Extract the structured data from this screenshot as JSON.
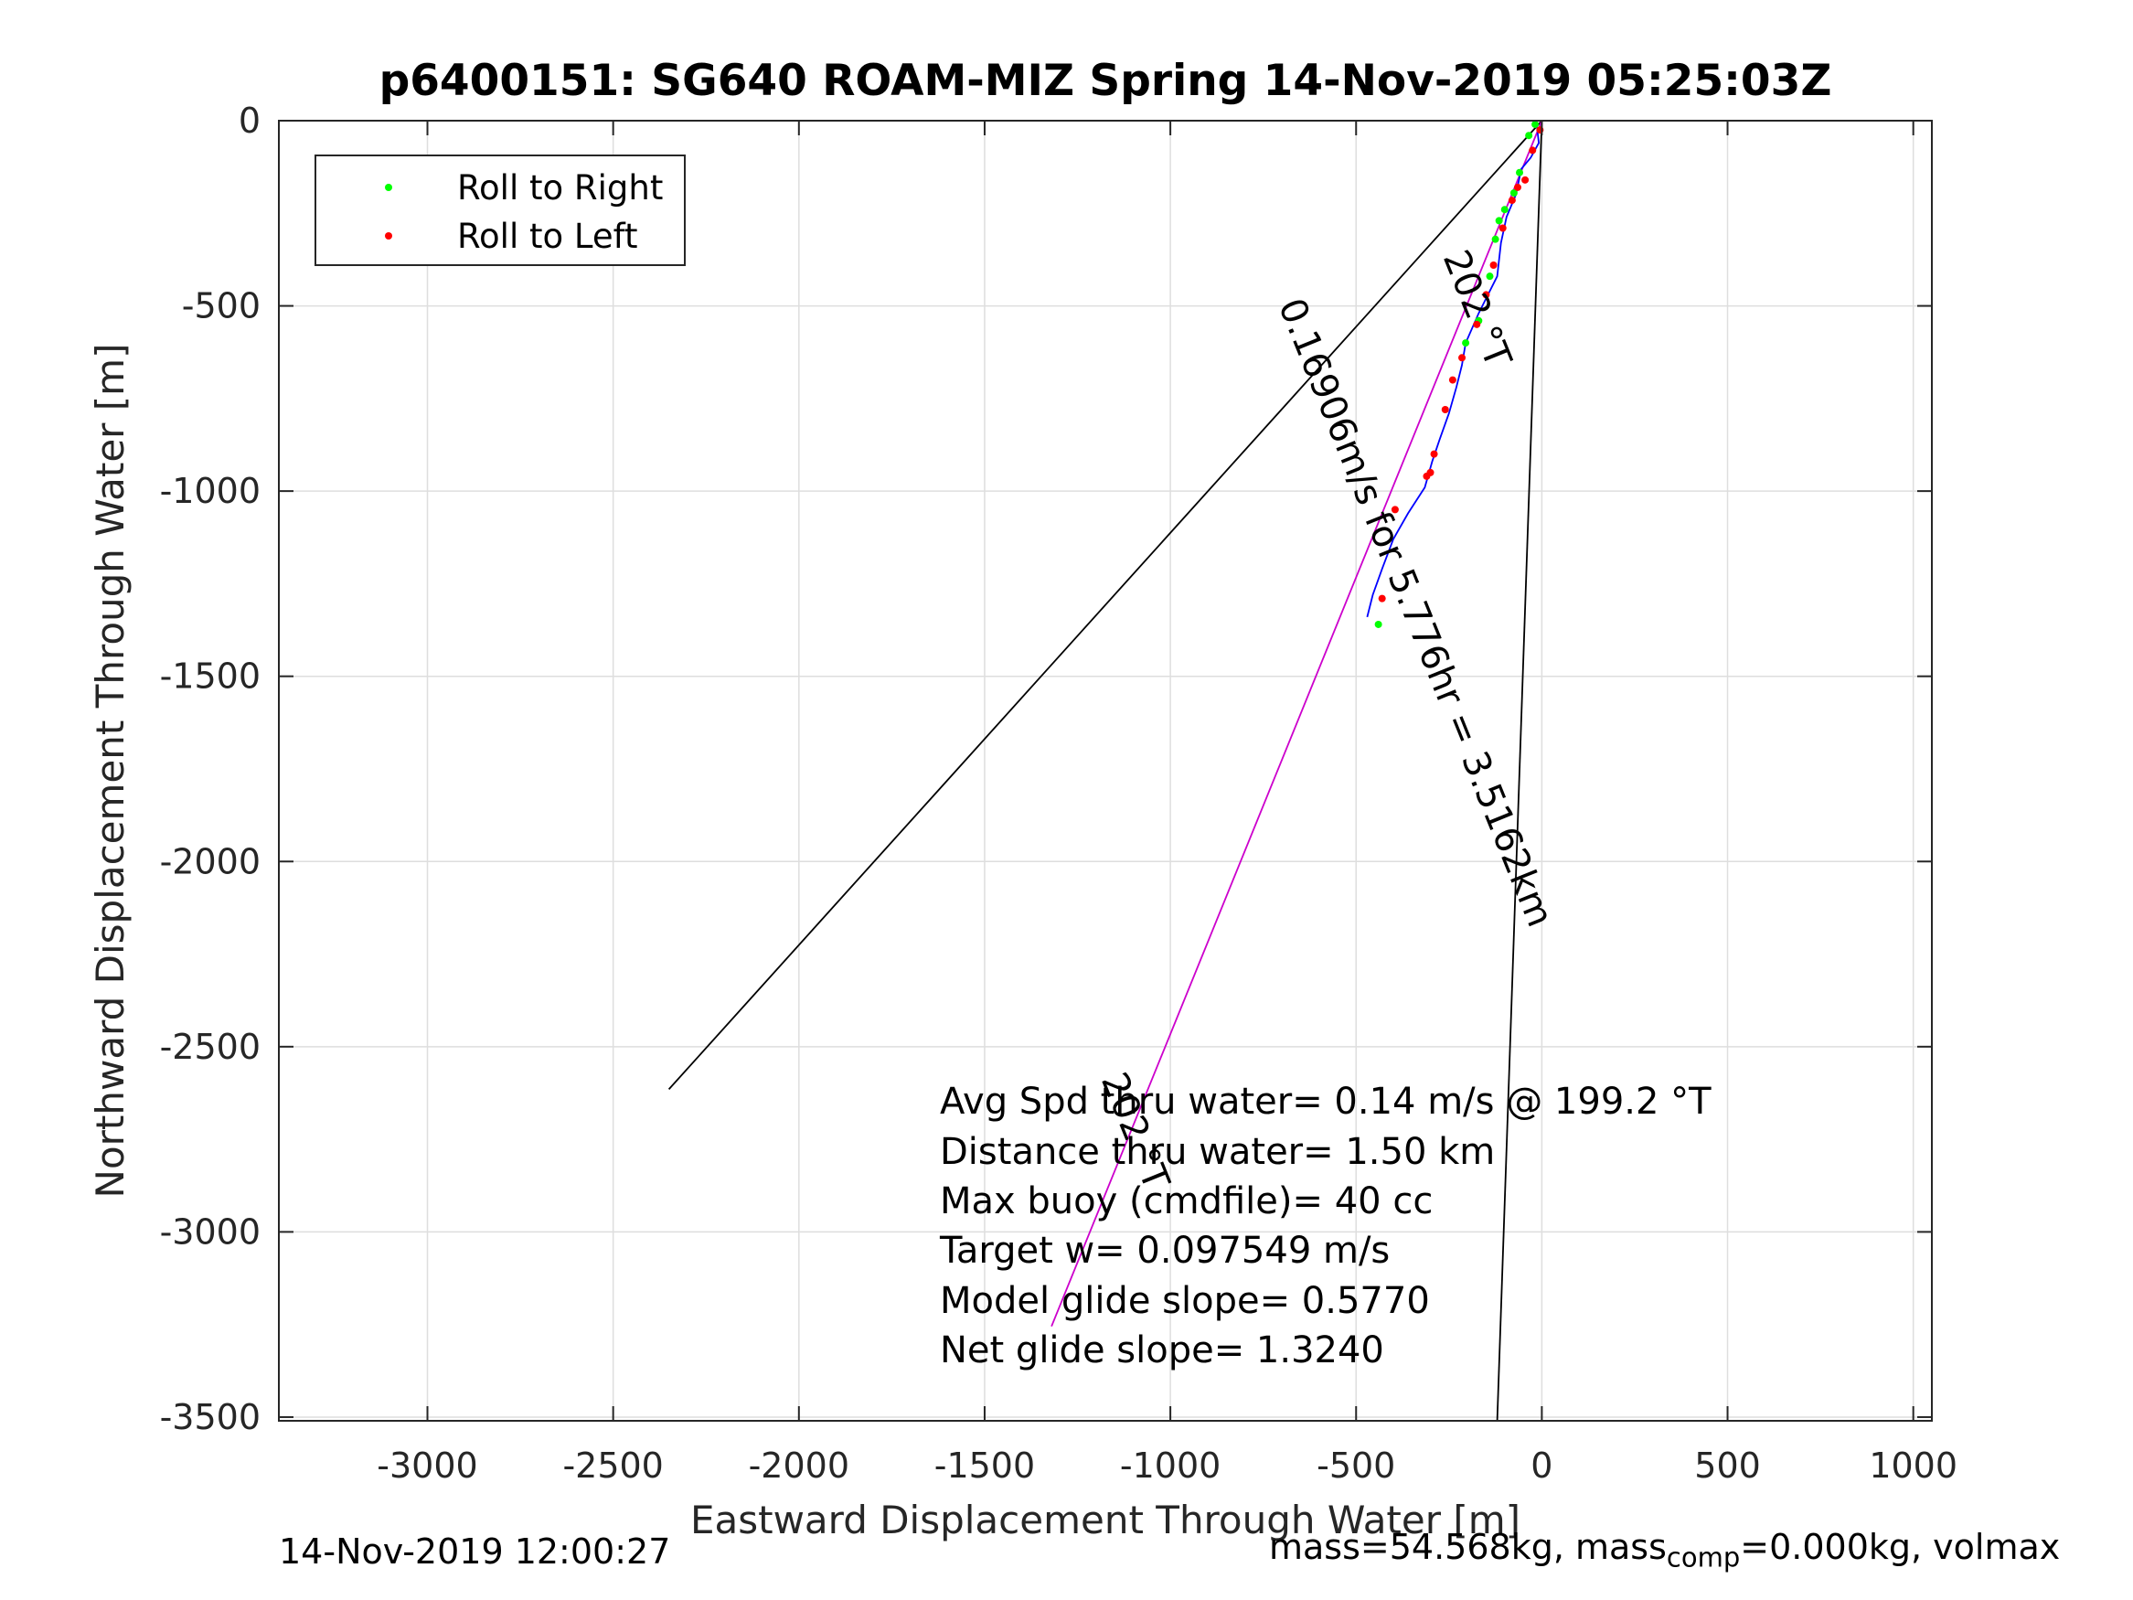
{
  "chart_data": {
    "type": "line",
    "title": "p6400151: SG640 ROAM-MIZ Spring 14-Nov-2019 05:25:03Z",
    "xlabel": "Eastward Displacement Through Water [m]",
    "ylabel": "Northward Displacement Through Water [m]",
    "xlim": [
      -3400,
      1050
    ],
    "ylim": [
      -3510,
      0
    ],
    "grid": true,
    "x_ticks": [
      -3000,
      -2500,
      -2000,
      -1500,
      -1000,
      -500,
      0,
      500,
      1000
    ],
    "y_ticks": [
      0,
      -500,
      -1000,
      -1500,
      -2000,
      -2500,
      -3000,
      -3500
    ],
    "x_tick_labels": [
      "-3000",
      "-2500",
      "-2000",
      "-1500",
      "-1000",
      "-500",
      "0",
      "500",
      "1000"
    ],
    "y_tick_labels": [
      "0",
      "-500",
      "-1000",
      "-1500",
      "-2000",
      "-2500",
      "-3000",
      "-3500"
    ],
    "legend": {
      "placement": "top-left",
      "entries": [
        {
          "label": "Roll to Right",
          "color": "#00ff00"
        },
        {
          "label": "Roll to Left",
          "color": "#ff0000"
        }
      ]
    },
    "series": [
      {
        "color": "#000000",
        "x": [
          0,
          -2350
        ],
        "y": [
          0,
          -2615
        ]
      },
      {
        "color": "#000000",
        "x": [
          0,
          -120
        ],
        "y": [
          0,
          -3510
        ]
      },
      {
        "color": "#cc00cc",
        "x": [
          0,
          -1320
        ],
        "y": [
          0,
          -3255
        ]
      },
      {
        "color": "#0000ff",
        "x": [
          -15,
          -8,
          -30,
          -55,
          -70,
          -95,
          -110,
          -120,
          -150,
          -170,
          -205,
          -215,
          -230,
          -250,
          -275,
          -295,
          -315,
          -360,
          -400,
          -430,
          -455,
          -470
        ],
        "y": [
          0,
          -60,
          -100,
          -130,
          -200,
          -260,
          -330,
          -420,
          -480,
          -520,
          -600,
          -660,
          -720,
          -790,
          -860,
          -920,
          -990,
          -1060,
          -1130,
          -1210,
          -1280,
          -1340
        ]
      },
      {
        "name": "Roll to Right",
        "color": "#00ff00",
        "mode": "markers",
        "x": [
          -18,
          -35,
          -60,
          -75,
          -100,
          -115,
          -125,
          -140,
          -170,
          -205,
          -440
        ],
        "y": [
          -10,
          -40,
          -140,
          -195,
          -240,
          -270,
          -320,
          -420,
          -540,
          -600,
          -1360
        ]
      },
      {
        "name": "Roll to Left",
        "color": "#ff0000",
        "mode": "markers",
        "x": [
          -5,
          -25,
          -45,
          -65,
          -80,
          -105,
          -130,
          -150,
          -175,
          -215,
          -240,
          -260,
          -290,
          -300,
          -310,
          -395,
          -430
        ],
        "y": [
          -25,
          -80,
          -160,
          -180,
          -215,
          -290,
          -390,
          -470,
          -550,
          -640,
          -700,
          -780,
          -900,
          -950,
          -960,
          -1050,
          -1290
        ]
      }
    ],
    "line_labels": [
      {
        "text": "202 °T",
        "x": -205,
        "y": -520,
        "angle_deg": 68
      },
      {
        "text": "0.16906m/s for 5.776hr = 3.5162km",
        "x": -370,
        "y": -1340,
        "angle_deg": 68
      },
      {
        "text": "202 °T",
        "x": -1125,
        "y": -2740,
        "angle_deg": 68
      }
    ],
    "annotations": [
      "Avg Spd thru water=  0.14 m/s @ 199.2 °T",
      "Distance thru water=  1.50 km",
      "Max buoy (cmdfile)= 40 cc",
      "Target w= 0.097549 m/s",
      "Model glide slope= 0.5770",
      "Net glide slope= 1.3240"
    ]
  },
  "footer": {
    "timestamp": "14-Nov-2019 12:00:27",
    "mass_prefix": "mass=54.568kg, mass",
    "mass_sub": "comp",
    "mass_suffix": "=0.000kg, volmax"
  }
}
